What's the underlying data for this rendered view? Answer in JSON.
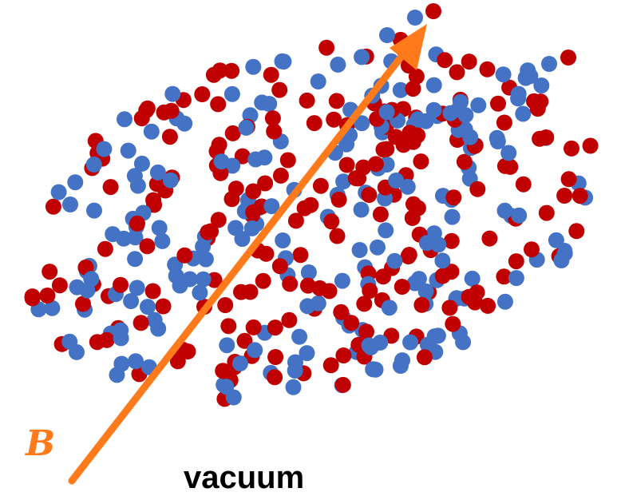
{
  "field_label": "B",
  "medium_label": "vacuum",
  "colors": {
    "positive_particle": "#c00000",
    "negative_particle": "#4472c4",
    "field_arrow": "#ff7a1a",
    "field_label": "#ff7a1a"
  }
}
